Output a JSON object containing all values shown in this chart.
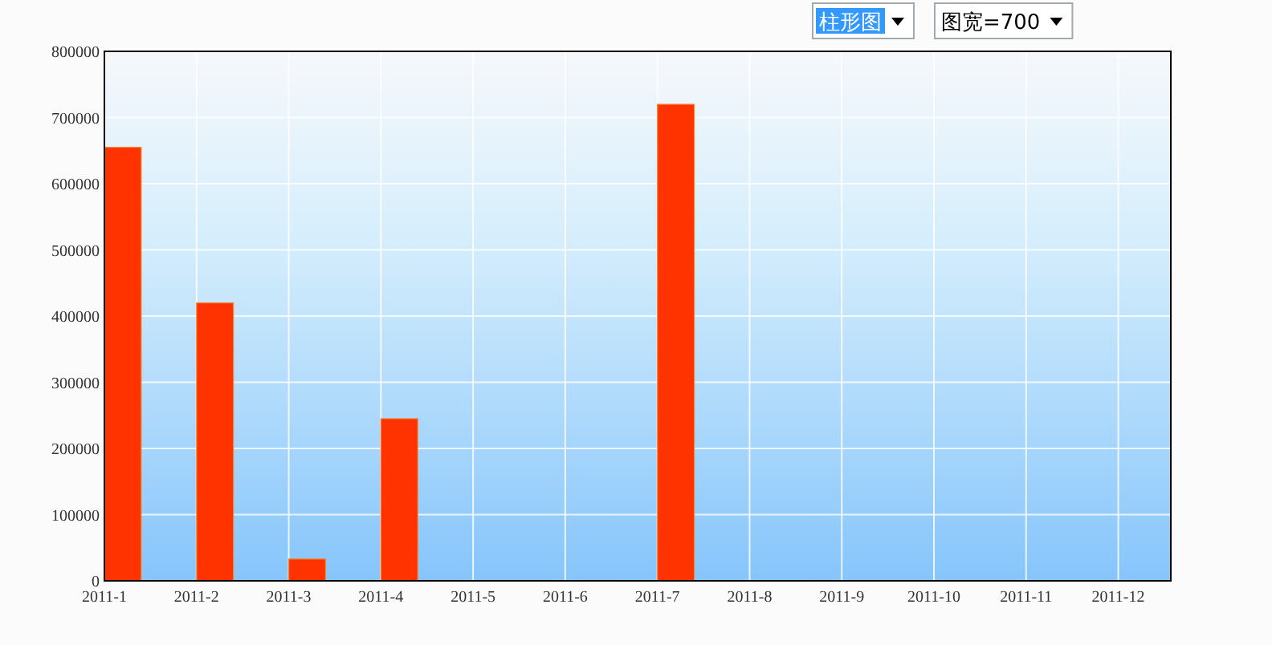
{
  "chart_data": {
    "type": "bar",
    "categories": [
      "2011-1",
      "2011-2",
      "2011-3",
      "2011-4",
      "2011-5",
      "2011-6",
      "2011-7",
      "2011-8",
      "2011-9",
      "2011-10",
      "2011-11",
      "2011-12"
    ],
    "values": [
      655000,
      420000,
      33000,
      245000,
      0,
      0,
      720000,
      0,
      0,
      0,
      0,
      0
    ],
    "color": "#ff3300",
    "ylim": [
      0,
      800000
    ],
    "yticks": [
      0,
      100000,
      200000,
      300000,
      400000,
      500000,
      600000,
      700000,
      800000
    ],
    "grid": true,
    "annotations": [
      "柱形图",
      "图宽=700"
    ]
  }
}
